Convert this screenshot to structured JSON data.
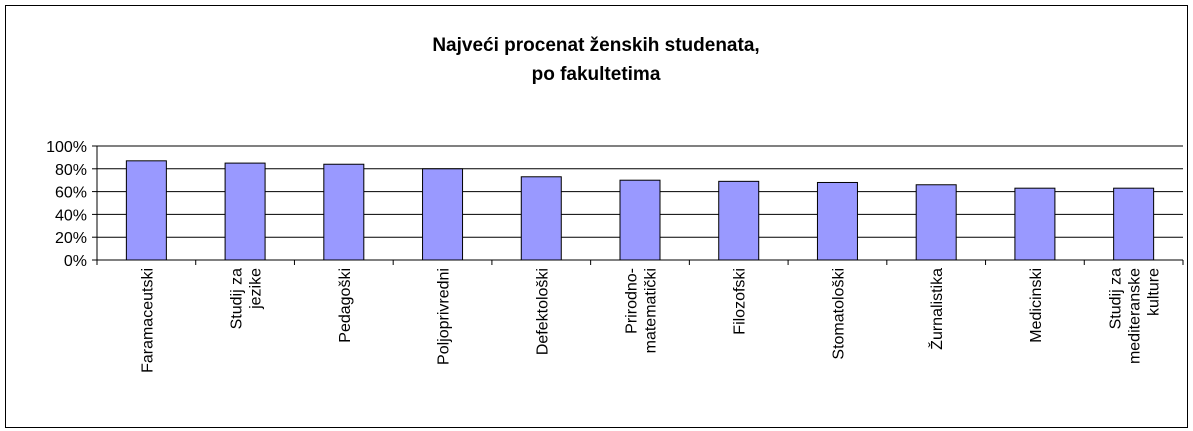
{
  "chart_data": {
    "type": "bar",
    "title": [
      "Najveći procenat ženskih studenata,",
      "po fakultetima"
    ],
    "categories": [
      [
        "Faramaceutski"
      ],
      [
        "Studij za",
        "jezike"
      ],
      [
        "Pedagoški"
      ],
      [
        "Poljoprivredni"
      ],
      [
        "Defektološki"
      ],
      [
        "Prirodno-",
        "matematički"
      ],
      [
        "Filozofski"
      ],
      [
        "Stomatološki"
      ],
      [
        "Žurnalistika"
      ],
      [
        "Medicinski"
      ],
      [
        "Studij za",
        "mediteranske",
        "kulture"
      ]
    ],
    "values": [
      87,
      85,
      84,
      80,
      73,
      70,
      69,
      68,
      66,
      63,
      63
    ],
    "color": "#9999ff",
    "ylim": [
      0,
      100
    ],
    "yticks": [
      {
        "value": 0,
        "label": "0%"
      },
      {
        "value": 20,
        "label": "20%"
      },
      {
        "value": 40,
        "label": "40%"
      },
      {
        "value": 60,
        "label": "60%"
      },
      {
        "value": 80,
        "label": "80%"
      },
      {
        "value": 100,
        "label": "100%"
      }
    ],
    "grid": true
  }
}
